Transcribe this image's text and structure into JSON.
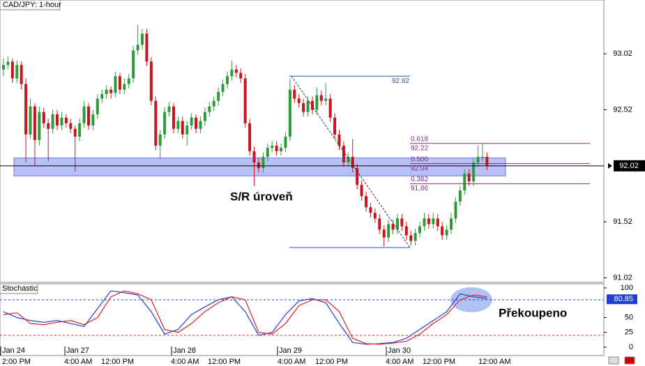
{
  "chart_data": {
    "type": "candlestick",
    "title": "CAD/JPY: 1-hour",
    "ylim": [
      90.98,
      93.5
    ],
    "yticks": [
      93.02,
      92.52,
      91.52,
      91.02
    ],
    "last_price": 92.02,
    "bull_color": "#2e9a3a",
    "bear_color": "#c8141e",
    "candles": [
      [
        92.88,
        92.98,
        92.82,
        92.92
      ],
      [
        92.92,
        93.0,
        92.88,
        92.95
      ],
      [
        92.95,
        92.98,
        92.76,
        92.8
      ],
      [
        92.8,
        92.96,
        92.76,
        92.92
      ],
      [
        92.92,
        92.95,
        92.7,
        92.75
      ],
      [
        92.75,
        92.8,
        92.05,
        92.3
      ],
      [
        92.3,
        92.62,
        92.26,
        92.55
      ],
      [
        92.55,
        92.58,
        92.02,
        92.25
      ],
      [
        92.25,
        92.55,
        92.2,
        92.5
      ],
      [
        92.5,
        92.54,
        92.36,
        92.4
      ],
      [
        92.4,
        92.44,
        92.06,
        92.35
      ],
      [
        92.35,
        92.52,
        92.31,
        92.48
      ],
      [
        92.48,
        92.52,
        92.34,
        92.38
      ],
      [
        92.38,
        92.5,
        92.34,
        92.45
      ],
      [
        92.45,
        92.48,
        92.36,
        92.4
      ],
      [
        92.4,
        92.44,
        92.31,
        92.35
      ],
      [
        92.35,
        92.38,
        91.97,
        92.28
      ],
      [
        92.28,
        92.44,
        92.24,
        92.4
      ],
      [
        92.4,
        92.6,
        92.36,
        92.55
      ],
      [
        92.55,
        92.58,
        92.34,
        92.38
      ],
      [
        92.38,
        92.52,
        92.34,
        92.48
      ],
      [
        92.48,
        92.66,
        92.44,
        92.62
      ],
      [
        92.62,
        92.7,
        92.58,
        92.66
      ],
      [
        92.66,
        92.74,
        92.62,
        92.7
      ],
      [
        92.7,
        92.73,
        92.62,
        92.67
      ],
      [
        92.67,
        92.86,
        92.63,
        92.82
      ],
      [
        92.82,
        92.85,
        92.66,
        92.7
      ],
      [
        92.7,
        92.8,
        92.66,
        92.75
      ],
      [
        92.75,
        92.84,
        92.71,
        92.8
      ],
      [
        92.8,
        93.09,
        92.76,
        93.05
      ],
      [
        93.05,
        93.28,
        93.01,
        93.1
      ],
      [
        93.1,
        93.24,
        93.06,
        93.2
      ],
      [
        93.2,
        93.24,
        92.91,
        92.95
      ],
      [
        92.95,
        92.99,
        92.56,
        92.6
      ],
      [
        92.6,
        92.64,
        92.16,
        92.2
      ],
      [
        92.2,
        92.34,
        92.08,
        92.3
      ],
      [
        92.3,
        92.54,
        92.26,
        92.5
      ],
      [
        92.5,
        92.59,
        92.46,
        92.55
      ],
      [
        92.55,
        92.58,
        92.31,
        92.35
      ],
      [
        92.35,
        92.46,
        92.31,
        92.42
      ],
      [
        92.42,
        92.46,
        92.26,
        92.3
      ],
      [
        92.3,
        92.42,
        92.2,
        92.38
      ],
      [
        92.38,
        92.49,
        92.34,
        92.45
      ],
      [
        92.45,
        92.48,
        92.31,
        92.35
      ],
      [
        92.35,
        92.46,
        92.31,
        92.42
      ],
      [
        92.42,
        92.54,
        92.38,
        92.5
      ],
      [
        92.5,
        92.59,
        92.46,
        92.55
      ],
      [
        92.55,
        92.64,
        92.51,
        92.6
      ],
      [
        92.6,
        92.72,
        92.56,
        92.68
      ],
      [
        92.68,
        92.79,
        92.64,
        92.75
      ],
      [
        92.75,
        92.86,
        92.71,
        92.82
      ],
      [
        92.82,
        92.96,
        92.78,
        92.88
      ],
      [
        92.88,
        92.92,
        92.81,
        92.85
      ],
      [
        92.85,
        92.89,
        92.76,
        92.8
      ],
      [
        92.8,
        92.84,
        92.36,
        92.4
      ],
      [
        92.4,
        92.44,
        92.11,
        92.15
      ],
      [
        92.15,
        92.19,
        91.84,
        92.05
      ],
      [
        92.05,
        92.09,
        91.96,
        92.0
      ],
      [
        92.0,
        92.14,
        91.96,
        92.1
      ],
      [
        92.1,
        92.22,
        92.06,
        92.18
      ],
      [
        92.18,
        92.24,
        92.14,
        92.2
      ],
      [
        92.2,
        92.24,
        92.11,
        92.15
      ],
      [
        92.15,
        92.22,
        92.11,
        92.18
      ],
      [
        92.18,
        92.32,
        92.14,
        92.28
      ],
      [
        92.28,
        92.8,
        92.24,
        92.7
      ],
      [
        92.7,
        92.74,
        92.58,
        92.62
      ],
      [
        92.62,
        92.66,
        92.54,
        92.58
      ],
      [
        92.58,
        92.62,
        92.46,
        92.5
      ],
      [
        92.5,
        92.64,
        92.46,
        92.6
      ],
      [
        92.6,
        92.64,
        92.48,
        92.52
      ],
      [
        92.52,
        92.72,
        92.48,
        92.65
      ],
      [
        92.65,
        92.69,
        92.56,
        92.6
      ],
      [
        92.6,
        92.76,
        92.56,
        92.62
      ],
      [
        92.62,
        92.66,
        92.41,
        92.45
      ],
      [
        92.45,
        92.49,
        92.26,
        92.3
      ],
      [
        92.3,
        92.34,
        92.16,
        92.2
      ],
      [
        92.2,
        92.24,
        92.01,
        92.05
      ],
      [
        92.05,
        92.14,
        92.01,
        92.1
      ],
      [
        92.1,
        92.26,
        91.96,
        92.0
      ],
      [
        92.0,
        92.04,
        91.81,
        91.85
      ],
      [
        91.85,
        91.89,
        91.71,
        91.75
      ],
      [
        91.75,
        91.79,
        91.61,
        91.65
      ],
      [
        91.65,
        91.69,
        91.56,
        91.6
      ],
      [
        91.6,
        91.64,
        91.51,
        91.55
      ],
      [
        91.55,
        91.59,
        91.41,
        91.45
      ],
      [
        91.45,
        91.49,
        91.3,
        91.38
      ],
      [
        91.38,
        91.54,
        91.34,
        91.5
      ],
      [
        91.5,
        91.54,
        91.41,
        91.45
      ],
      [
        91.45,
        91.59,
        91.41,
        91.55
      ],
      [
        91.55,
        91.59,
        91.44,
        91.48
      ],
      [
        91.48,
        91.52,
        91.36,
        91.4
      ],
      [
        91.4,
        91.44,
        91.31,
        91.35
      ],
      [
        91.35,
        91.46,
        91.31,
        91.42
      ],
      [
        91.42,
        91.52,
        91.38,
        91.48
      ],
      [
        91.48,
        91.6,
        91.44,
        91.55
      ],
      [
        91.55,
        91.59,
        91.46,
        91.5
      ],
      [
        91.5,
        91.6,
        91.46,
        91.55
      ],
      [
        91.55,
        91.59,
        91.44,
        91.48
      ],
      [
        91.48,
        91.52,
        91.36,
        91.4
      ],
      [
        91.4,
        91.49,
        91.36,
        91.45
      ],
      [
        91.45,
        91.6,
        91.41,
        91.55
      ],
      [
        91.55,
        91.74,
        91.51,
        91.7
      ],
      [
        91.7,
        91.84,
        91.66,
        91.8
      ],
      [
        91.8,
        91.99,
        91.76,
        91.95
      ],
      [
        91.95,
        91.99,
        91.84,
        91.88
      ],
      [
        91.88,
        92.09,
        91.84,
        92.05
      ],
      [
        92.05,
        92.2,
        92.01,
        92.1
      ],
      [
        92.1,
        92.22,
        92.06,
        92.1
      ],
      [
        92.1,
        92.14,
        91.98,
        92.02
      ]
    ],
    "sr_zone": [
      91.93,
      92.09
    ],
    "sr_label": "S/R úroveň",
    "fib_high": {
      "value": 92.82,
      "label": "92.82"
    },
    "fib_low": 91.29,
    "fib_levels": [
      {
        "ratio": "0.618",
        "value": 92.22
      },
      {
        "ratio": "0.500",
        "value": 92.04
      },
      {
        "ratio": "0.382",
        "value": 91.86
      }
    ],
    "date_labels": [
      "Jan 24",
      "Jan 27",
      "Jan 28",
      "Jan 29",
      "Jan 30"
    ],
    "time_labels": [
      "2:00 PM",
      "4:00 AM",
      "12:00 PM",
      "4:00 AM",
      "12:00 PM",
      "4:00 AM",
      "12:00 PM",
      "4:00 AM",
      "12:00 PM",
      "12:00 AM"
    ],
    "stochastic": {
      "title": "Stochastic",
      "ylim": [
        -14,
        107
      ],
      "yticks": [
        100,
        50,
        25,
        0
      ],
      "levels": [
        80,
        20
      ],
      "last_value": 80.85,
      "annotation": "Překoupeno",
      "x": [
        0,
        3,
        6,
        9,
        12,
        15,
        18,
        21,
        24,
        27,
        30,
        33,
        36,
        39,
        42,
        45,
        48,
        51,
        54,
        57,
        60,
        63,
        66,
        69,
        72,
        75,
        78,
        81,
        84,
        87,
        90,
        93,
        96,
        99,
        102,
        105,
        108
      ],
      "series": [
        {
          "color": "#1f3fd0",
          "values": [
            60,
            50,
            45,
            42,
            45,
            40,
            35,
            65,
            95,
            92,
            88,
            60,
            22,
            30,
            55,
            68,
            80,
            85,
            60,
            20,
            25,
            55,
            78,
            82,
            75,
            40,
            8,
            5,
            6,
            8,
            15,
            30,
            45,
            60,
            90,
            85,
            82
          ]
        },
        {
          "color": "#e02020",
          "values": [
            55,
            58,
            40,
            38,
            42,
            45,
            38,
            50,
            85,
            95,
            90,
            80,
            30,
            25,
            40,
            60,
            75,
            85,
            80,
            25,
            22,
            40,
            70,
            80,
            80,
            60,
            15,
            6,
            5,
            7,
            10,
            22,
            40,
            55,
            80,
            88,
            85
          ]
        }
      ]
    }
  }
}
